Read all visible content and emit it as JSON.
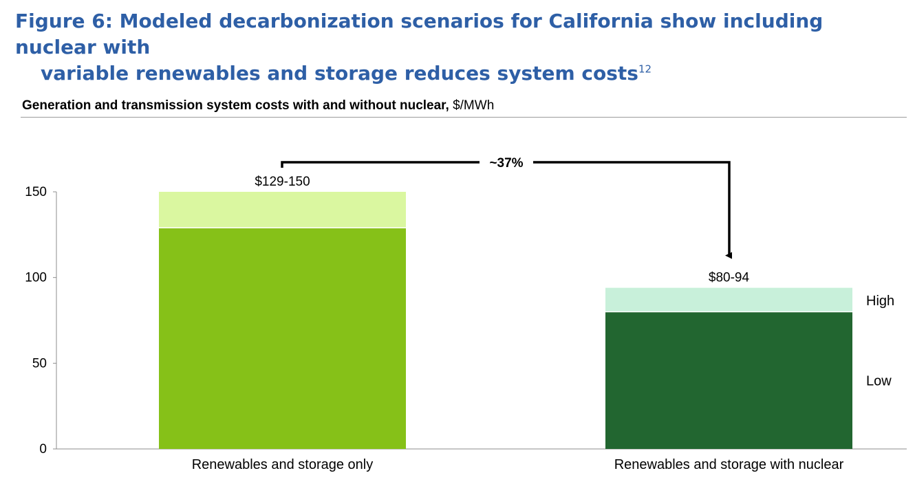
{
  "figure": {
    "title_line1": "Figure 6: Modeled decarbonization scenarios for California show including nuclear with",
    "title_line2": "variable renewables and storage reduces system costs",
    "footnote_ref": "12"
  },
  "subtitle": {
    "bold": "Generation and transmission system costs with and without nuclear,",
    "unit": " $/MWh"
  },
  "chart_data": {
    "type": "bar",
    "stacked": true,
    "categories": [
      "Renewables and storage only",
      "Renewables and storage with nuclear"
    ],
    "series": [
      {
        "name": "Low",
        "values": [
          129,
          80
        ],
        "colors": [
          "#86C118",
          "#226630"
        ]
      },
      {
        "name": "High",
        "values": [
          21,
          14
        ],
        "colors": [
          "#DAF7A0",
          "#C8F0DA"
        ]
      }
    ],
    "totals": [
      150,
      94
    ],
    "data_labels": [
      "$129-150",
      "$80-94"
    ],
    "yticks": [
      0,
      50,
      100,
      150
    ],
    "ylim": [
      0,
      170
    ],
    "grid": false,
    "legend": "right",
    "annotation": "~37%",
    "legend_labels": [
      "High",
      "Low"
    ]
  }
}
